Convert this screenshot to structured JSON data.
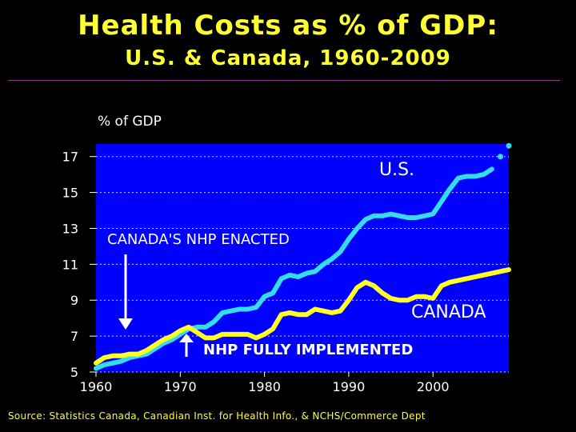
{
  "title": "Health Costs as % of GDP:",
  "subtitle": "U.S. & Canada, 1960-2009",
  "source": "Source: Statistics Canada, Canadian Inst. for Health Info., & NCHS/Commerce Dept",
  "colors": {
    "background": "#000000",
    "plot_bg": "#0000ff",
    "title": "#ffff33",
    "us": "#33ddee",
    "canada": "#ffff22",
    "annotation": "#ffffff"
  },
  "chart_data": {
    "type": "line",
    "ylabel": "% of GDP",
    "xlabel": "",
    "xlim": [
      1960,
      2009
    ],
    "ylim": [
      5,
      17.7
    ],
    "yticks": [
      5,
      7,
      9,
      11,
      13,
      15,
      17
    ],
    "xticks": [
      1960,
      1970,
      1980,
      1990,
      2000
    ],
    "grid": true,
    "series": [
      {
        "name": "U.S.",
        "x": [
          1960,
          1961,
          1962,
          1963,
          1964,
          1965,
          1966,
          1967,
          1968,
          1969,
          1970,
          1971,
          1972,
          1973,
          1974,
          1975,
          1976,
          1977,
          1978,
          1979,
          1980,
          1981,
          1982,
          1983,
          1984,
          1985,
          1986,
          1987,
          1988,
          1989,
          1990,
          1991,
          1992,
          1993,
          1994,
          1995,
          1996,
          1997,
          1998,
          1999,
          2000,
          2001,
          2002,
          2003,
          2004,
          2005,
          2006,
          2007
        ],
        "y": [
          5.2,
          5.4,
          5.5,
          5.6,
          5.8,
          5.9,
          6.0,
          6.3,
          6.6,
          6.8,
          7.1,
          7.4,
          7.5,
          7.5,
          7.8,
          8.3,
          8.4,
          8.5,
          8.5,
          8.6,
          9.2,
          9.4,
          10.2,
          10.4,
          10.3,
          10.5,
          10.6,
          11.0,
          11.3,
          11.7,
          12.4,
          13.0,
          13.5,
          13.7,
          13.7,
          13.8,
          13.7,
          13.6,
          13.6,
          13.7,
          13.8,
          14.5,
          15.2,
          15.8,
          15.9,
          15.9,
          16.0,
          16.3
        ]
      },
      {
        "name": "CANADA",
        "x": [
          1960,
          1961,
          1962,
          1963,
          1964,
          1965,
          1966,
          1967,
          1968,
          1969,
          1970,
          1971,
          1972,
          1973,
          1974,
          1975,
          1976,
          1977,
          1978,
          1979,
          1980,
          1981,
          1982,
          1983,
          1984,
          1985,
          1986,
          1987,
          1988,
          1989,
          1990,
          1991,
          1992,
          1993,
          1994,
          1995,
          1996,
          1997,
          1998,
          1999,
          2000,
          2001,
          2002,
          2003,
          2004,
          2005,
          2006,
          2007,
          2008,
          2009
        ],
        "y": [
          5.5,
          5.8,
          5.9,
          5.9,
          6.0,
          6.0,
          6.2,
          6.5,
          6.8,
          7.0,
          7.3,
          7.5,
          7.2,
          6.9,
          6.9,
          7.1,
          7.1,
          7.1,
          7.1,
          6.9,
          7.1,
          7.4,
          8.2,
          8.3,
          8.2,
          8.2,
          8.5,
          8.4,
          8.3,
          8.4,
          9.0,
          9.7,
          10.0,
          9.8,
          9.4,
          9.1,
          9.0,
          9.0,
          9.2,
          9.2,
          9.1,
          9.8,
          10.0,
          10.1,
          10.2,
          10.3,
          10.4,
          10.5,
          10.6,
          10.7
        ]
      }
    ],
    "projection": {
      "series": "U.S.",
      "x": [
        2008,
        2009
      ],
      "y": [
        17.0,
        17.6
      ]
    },
    "annotations": {
      "us_label": "U.S.",
      "canada_label": "CANADA",
      "nhp_enacted": "CANADA'S NHP ENACTED",
      "nhp_implemented": "NHP FULLY IMPLEMENTED"
    }
  }
}
